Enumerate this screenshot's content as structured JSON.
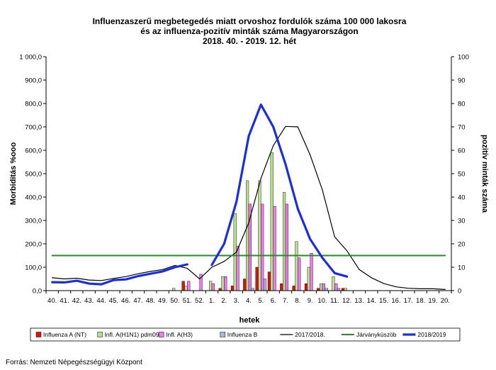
{
  "chart_data": {
    "type": "bar",
    "title_lines": [
      "Influenzaszerű megbetegedés miatt orvoshoz fordulók száma 100 000 lakosra",
      "és az influenza-pozitív minták száma Magyarországon",
      "2018. 40. - 2019. 12. hét"
    ],
    "xlabel": "hetek",
    "ylabel_left": "Morbiditás %ooo",
    "ylabel_right": "pozitív minták száma",
    "ylim_left": [
      0,
      1000
    ],
    "ylim_right": [
      0,
      100
    ],
    "yticks_left": [
      "0,0",
      "100,0",
      "200,0",
      "300,0",
      "400,0",
      "500,0",
      "600,0",
      "700,0",
      "800,0",
      "900,0",
      "1 000,0"
    ],
    "yticks_right": [
      "0",
      "10",
      "20",
      "30",
      "40",
      "50",
      "60",
      "70",
      "80",
      "90",
      "100"
    ],
    "categories": [
      "40.",
      "41.",
      "42.",
      "43.",
      "44.",
      "45.",
      "46.",
      "47.",
      "48.",
      "49.",
      "50.",
      "51.",
      "52.",
      "1.",
      "2.",
      "3.",
      "4.",
      "5.",
      "6.",
      "7.",
      "8.",
      "9.",
      "10.",
      "11.",
      "12.",
      "13.",
      "14.",
      "15.",
      "16.",
      "17.",
      "18.",
      "19.",
      "20."
    ],
    "bar_series": [
      {
        "name": "Influenza A (NT)",
        "color": "#e01010",
        "values": [
          0,
          0,
          0,
          0,
          0,
          0,
          0,
          0,
          0,
          0,
          0,
          4,
          0,
          0,
          1,
          2,
          5,
          10,
          8,
          3,
          2,
          3,
          1,
          0,
          1,
          0,
          0,
          0,
          0,
          0,
          0,
          0,
          0
        ]
      },
      {
        "name": "Infl. A(H1N1) pdm09",
        "color": "#b8e08c",
        "values": [
          0,
          0,
          0,
          0,
          0,
          0,
          0,
          0,
          0,
          0,
          1,
          2,
          0,
          4,
          6,
          33,
          47,
          47,
          59,
          42,
          21,
          10,
          3,
          6,
          1,
          0,
          0,
          0,
          0,
          0,
          0,
          0,
          0
        ]
      },
      {
        "name": "Infl. A(H3)",
        "color": "#f078f0",
        "values": [
          0,
          0,
          0,
          0,
          0,
          0,
          0,
          0,
          0,
          0,
          0,
          4,
          7,
          3,
          6,
          19,
          37,
          37,
          36,
          37,
          14,
          16,
          3,
          3,
          0,
          0,
          0,
          0,
          0,
          0,
          0,
          0,
          0
        ]
      },
      {
        "name": "Influenza B",
        "color": "#a8b8e0",
        "values": [
          0,
          0,
          0,
          0,
          0,
          0,
          0,
          0,
          0,
          0,
          0,
          0,
          0,
          0,
          0,
          0,
          1,
          5,
          0,
          0,
          0,
          0,
          1,
          1,
          0,
          0,
          0,
          0,
          0,
          0,
          0,
          0,
          0
        ]
      }
    ],
    "line_series": [
      {
        "name": "2017/2018.",
        "color": "#000000",
        "values": [
          55,
          50,
          53,
          45,
          43,
          52,
          60,
          72,
          82,
          90,
          108,
          95,
          50,
          100,
          125,
          165,
          290,
          480,
          620,
          702,
          700,
          580,
          430,
          230,
          170,
          90,
          55,
          30,
          16,
          10,
          8,
          8,
          5
        ]
      },
      {
        "name": "Járványküszöb",
        "color": "#2a8a2a",
        "values": [
          150,
          150,
          150,
          150,
          150,
          150,
          150,
          150,
          150,
          150,
          150,
          150,
          150,
          150,
          150,
          150,
          150,
          150,
          150,
          150,
          150,
          150,
          150,
          150,
          150,
          150,
          150,
          150,
          150,
          150,
          150,
          150,
          150
        ]
      },
      {
        "name": "2018/2019",
        "color": "#1a2ee0",
        "values": [
          36,
          35,
          42,
          30,
          27,
          45,
          48,
          62,
          72,
          82,
          100,
          112,
          null,
          110,
          200,
          380,
          660,
          795,
          700,
          540,
          350,
          220,
          140,
          75,
          60,
          null,
          null,
          null,
          null,
          null,
          null,
          null,
          null
        ]
      }
    ],
    "legend_position": "bottom",
    "grid": false
  },
  "source": "Forrás: Nemzeti Népegészségügyi Központ"
}
